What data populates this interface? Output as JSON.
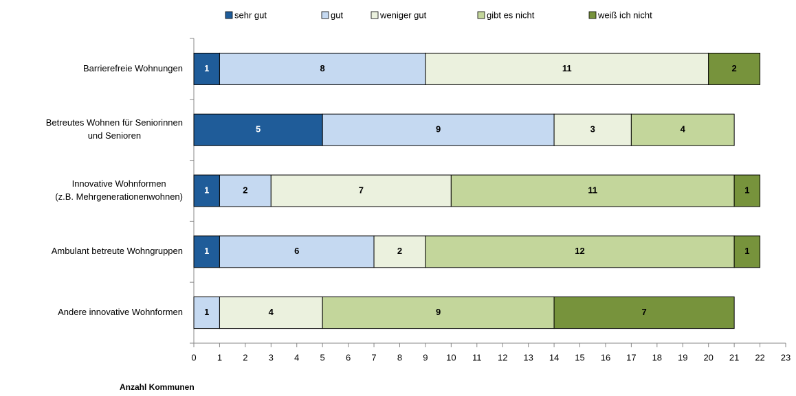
{
  "chart_data": {
    "type": "stacked_barh",
    "categories": [
      [
        "Barrierefreie Wohnungen"
      ],
      [
        "Betreutes Wohnen für Seniorinnen",
        "und Senioren"
      ],
      [
        "Innovative Wohnformen",
        "(z.B. Mehrgenerationenwohnen)"
      ],
      [
        "Ambulant betreute Wohngruppen"
      ],
      [
        "Andere innovative Wohnformen"
      ]
    ],
    "series": [
      {
        "name": "sehr gut",
        "color": "#1f5c99",
        "label_color": "#ffffff",
        "values": [
          1,
          5,
          1,
          1,
          0
        ]
      },
      {
        "name": "gut",
        "color": "#c5d9f1",
        "label_color": "#000000",
        "values": [
          8,
          9,
          2,
          6,
          1
        ]
      },
      {
        "name": "weniger gut",
        "color": "#ebf1de",
        "label_color": "#000000",
        "values": [
          11,
          3,
          7,
          2,
          4
        ]
      },
      {
        "name": "gibt es nicht",
        "color": "#c3d69b",
        "label_color": "#000000",
        "values": [
          0,
          4,
          11,
          12,
          9
        ]
      },
      {
        "name": "weiß ich nicht",
        "color": "#77933c",
        "label_color": "#000000",
        "values": [
          2,
          0,
          1,
          1,
          7
        ]
      }
    ],
    "xlabel": "Anzahl Kommunen",
    "xlim": [
      0,
      23
    ],
    "xticks": [
      0,
      1,
      2,
      3,
      4,
      5,
      6,
      7,
      8,
      9,
      10,
      11,
      12,
      13,
      14,
      15,
      16,
      17,
      18,
      19,
      20,
      21,
      22,
      23
    ],
    "legend": "top"
  }
}
